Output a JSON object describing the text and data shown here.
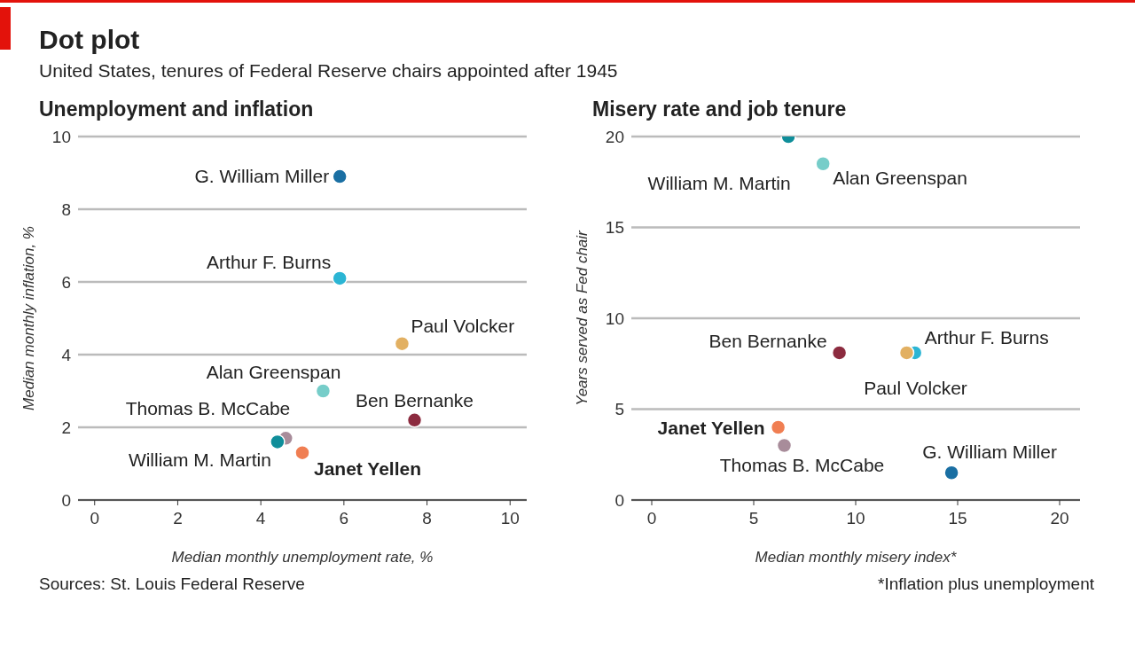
{
  "chart_data": [
    {
      "type": "scatter",
      "title": "Unemployment and inflation",
      "xlabel": "Median monthly unemployment rate, %",
      "ylabel": "Median monthly inflation, %",
      "annotations": [
        "Dot plot",
        "United States, tenures of Federal Reserve chairs appointed after 1945",
        "Sources: St. Louis Federal Reserve"
      ],
      "xlim": [
        -0.4,
        10.4
      ],
      "ylim": [
        0,
        10
      ],
      "xticks": [
        0,
        2,
        4,
        6,
        8,
        10
      ],
      "yticks": [
        0,
        2,
        4,
        6,
        8,
        10
      ],
      "grid": "y",
      "legend": false,
      "marker": "circle",
      "series": [
        {
          "name": "G. William Miller",
          "color": "#1a6fa3",
          "x": [
            5.9
          ],
          "values": [
            8.9
          ]
        },
        {
          "name": "Arthur F. Burns",
          "color": "#2bb5d4",
          "x": [
            5.9
          ],
          "values": [
            6.1
          ]
        },
        {
          "name": "Paul Volcker",
          "color": "#e2b062",
          "x": [
            7.4
          ],
          "values": [
            4.3
          ]
        },
        {
          "name": "Alan Greenspan",
          "color": "#76cdc9",
          "x": [
            5.5
          ],
          "values": [
            3.0
          ]
        },
        {
          "name": "Ben Bernanke",
          "color": "#8c2b3f",
          "x": [
            7.7
          ],
          "values": [
            2.2
          ]
        },
        {
          "name": "Thomas B. McCabe",
          "color": "#a88c9a",
          "x": [
            4.6
          ],
          "values": [
            1.7
          ]
        },
        {
          "name": "William M. Martin",
          "color": "#0f8e9a",
          "x": [
            4.4
          ],
          "values": [
            1.6
          ]
        },
        {
          "name": "Janet Yellen",
          "color": "#f07e52",
          "x": [
            5.0
          ],
          "values": [
            1.3
          ]
        }
      ]
    },
    {
      "type": "scatter",
      "title": "Misery rate and job tenure",
      "xlabel": "Median monthly misery index*",
      "ylabel": "Years served as Fed chair",
      "annotations": [
        "*Inflation plus unemployment"
      ],
      "xlim": [
        -1,
        21
      ],
      "ylim": [
        0,
        20
      ],
      "xticks": [
        0,
        5,
        10,
        15,
        20
      ],
      "yticks": [
        0,
        5,
        10,
        15,
        20
      ],
      "grid": "y",
      "legend": false,
      "marker": "circle",
      "series": [
        {
          "name": "G. William Miller",
          "color": "#1a6fa3",
          "x": [
            14.7
          ],
          "values": [
            1.5
          ]
        },
        {
          "name": "Arthur F. Burns",
          "color": "#2bb5d4",
          "x": [
            12.9
          ],
          "values": [
            8.1
          ]
        },
        {
          "name": "Paul Volcker",
          "color": "#e2b062",
          "x": [
            12.5
          ],
          "values": [
            8.1
          ]
        },
        {
          "name": "Alan Greenspan",
          "color": "#76cdc9",
          "x": [
            8.4
          ],
          "values": [
            18.5
          ]
        },
        {
          "name": "Ben Bernanke",
          "color": "#8c2b3f",
          "x": [
            9.2
          ],
          "values": [
            8.1
          ]
        },
        {
          "name": "Thomas B. McCabe",
          "color": "#a88c9a",
          "x": [
            6.5
          ],
          "values": [
            3.0
          ]
        },
        {
          "name": "William M. Martin",
          "color": "#0f8e9a",
          "x": [
            6.7
          ],
          "values": [
            20
          ]
        },
        {
          "name": "Janet Yellen",
          "color": "#f07e52",
          "x": [
            6.2
          ],
          "values": [
            4.0
          ]
        }
      ]
    }
  ]
}
